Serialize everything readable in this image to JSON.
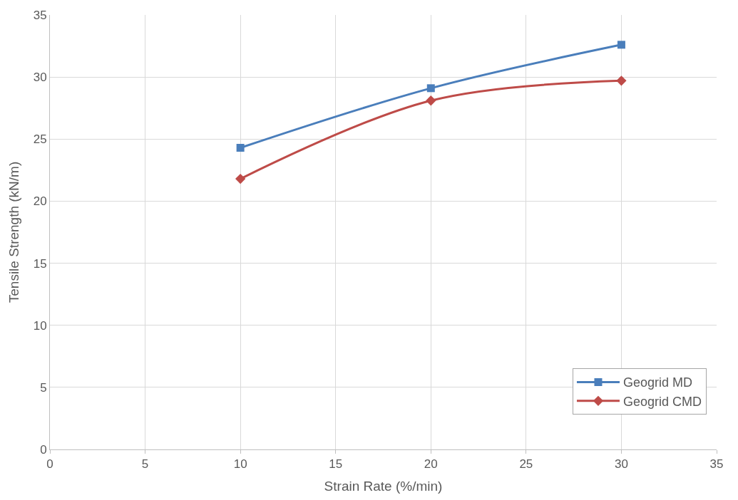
{
  "chart_data": {
    "type": "line",
    "xlabel": "Strain Rate (%/min)",
    "ylabel": "Tensile Strength (kN/m)",
    "xlim": [
      0,
      35
    ],
    "xticks": [
      0,
      5,
      10,
      15,
      20,
      25,
      30,
      35
    ],
    "ylim": [
      0,
      35
    ],
    "yticks": [
      0,
      5,
      10,
      15,
      20,
      25,
      30,
      35
    ],
    "grid": true,
    "legend": "bottom right",
    "line_style": "solid",
    "series": [
      {
        "name": "Geogrid MD",
        "color": "#4a7ebb",
        "marker": "square",
        "x": [
          10,
          20,
          30
        ],
        "values": [
          24.3,
          29.1,
          32.6
        ]
      },
      {
        "name": "Geogrid CMD",
        "color": "#be4b48",
        "marker": "diamond",
        "x": [
          10,
          20,
          30
        ],
        "values": [
          21.8,
          28.1,
          29.7
        ]
      }
    ]
  }
}
